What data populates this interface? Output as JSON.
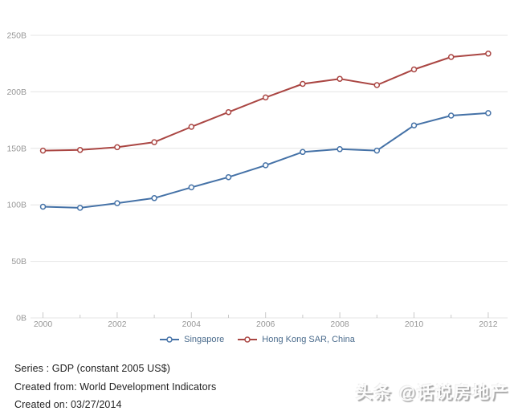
{
  "chart_data": {
    "type": "line",
    "x": [
      2000,
      2001,
      2002,
      2003,
      2004,
      2005,
      2006,
      2007,
      2008,
      2009,
      2010,
      2011,
      2012
    ],
    "x_tick_labels": [
      "2000",
      "2002",
      "2004",
      "2006",
      "2008",
      "2010",
      "2012"
    ],
    "y_ticks": [
      0,
      50,
      100,
      150,
      200,
      250
    ],
    "y_tick_labels": [
      "0B",
      "50B",
      "100B",
      "150B",
      "200B",
      "250B"
    ],
    "ylim": [
      0,
      250
    ],
    "grid": true,
    "legend_position": "bottom",
    "title": "",
    "xlabel": "",
    "ylabel": "",
    "series": [
      {
        "name": "Singapore",
        "color": "#4572a7",
        "values": [
          98.4,
          97.4,
          101.5,
          106.0,
          115.5,
          124.5,
          135.0,
          146.8,
          149.3,
          148.0,
          170.3,
          179.0,
          181.2
        ]
      },
      {
        "name": "Hong Kong SAR, China",
        "color": "#aa4643",
        "values": [
          148.0,
          148.6,
          151.0,
          155.5,
          169.0,
          182.0,
          195.0,
          207.0,
          211.5,
          206.0,
          219.8,
          230.8,
          233.8
        ]
      }
    ]
  },
  "colors": {
    "grid": "#e4e4e4",
    "axis_text": "#979797",
    "tick": "#c9c9c9",
    "legend_text": "#4a6b8c",
    "marker_fill": "#ffffff"
  },
  "footer": {
    "series_line": "Series : GDP (constant 2005 US$)",
    "created_from_line": "Created from: World Development Indicators",
    "created_on_line": "Created on: 03/27/2014"
  },
  "watermark": {
    "text": "头条 @话说房地产"
  }
}
